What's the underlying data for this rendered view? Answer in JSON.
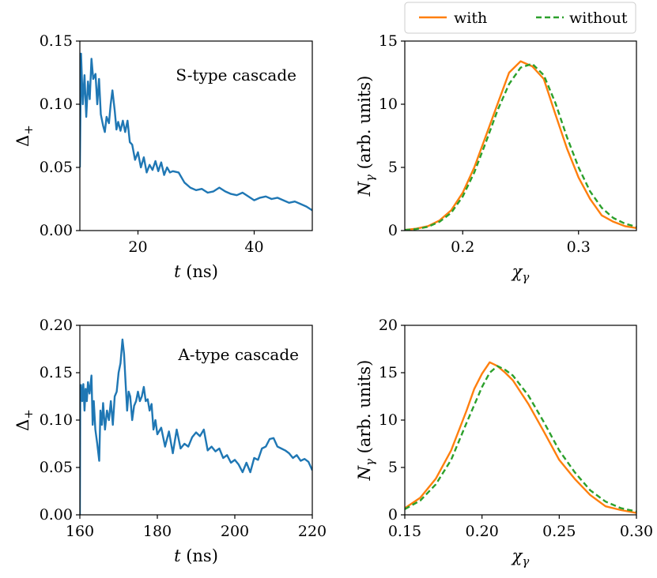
{
  "colors": {
    "blue": "#1f77b4",
    "orange": "#ff7f0e",
    "green": "#2ca02c"
  },
  "legend": {
    "with_label": "with",
    "without_label": "without"
  },
  "chart_data": [
    {
      "type": "line",
      "panel": "top-left",
      "annotation": "S-type cascade",
      "xlabel": "t (ns)",
      "ylabel": "Δ+",
      "xlim": [
        10,
        50
      ],
      "ylim": [
        0,
        0.15
      ],
      "xticks": [
        "20",
        "40"
      ],
      "yticks": [
        "0.00",
        "0.05",
        "0.10",
        "0.15"
      ],
      "series": [
        {
          "color": "#1f77b4",
          "x": [
            10.0,
            10.2,
            10.5,
            10.8,
            11.1,
            11.4,
            11.7,
            12.0,
            12.3,
            12.7,
            13.0,
            13.3,
            13.6,
            14.0,
            14.3,
            14.6,
            15.0,
            15.3,
            15.6,
            16.0,
            16.3,
            16.6,
            17.0,
            17.4,
            17.8,
            18.2,
            18.6,
            19.0,
            19.5,
            20.0,
            20.5,
            21.0,
            21.5,
            22.0,
            22.5,
            23.0,
            23.5,
            24.0,
            24.5,
            25.0,
            25.5,
            26.0,
            27.0,
            28.0,
            29.0,
            30.0,
            31.0,
            32.0,
            33.0,
            34.0,
            35.0,
            36.0,
            37.0,
            38.0,
            39.0,
            40.0,
            41.0,
            42.0,
            43.0,
            44.0,
            45.0,
            46.0,
            47.0,
            48.0,
            49.0,
            50.0
          ],
          "y": [
            0.05,
            0.14,
            0.1,
            0.123,
            0.09,
            0.118,
            0.104,
            0.136,
            0.12,
            0.124,
            0.1,
            0.12,
            0.092,
            0.083,
            0.078,
            0.09,
            0.085,
            0.1,
            0.111,
            0.095,
            0.08,
            0.086,
            0.079,
            0.087,
            0.078,
            0.087,
            0.07,
            0.068,
            0.056,
            0.062,
            0.05,
            0.058,
            0.046,
            0.052,
            0.048,
            0.055,
            0.047,
            0.054,
            0.044,
            0.05,
            0.046,
            0.047,
            0.046,
            0.038,
            0.034,
            0.032,
            0.033,
            0.03,
            0.031,
            0.034,
            0.031,
            0.029,
            0.028,
            0.03,
            0.027,
            0.024,
            0.026,
            0.027,
            0.025,
            0.026,
            0.024,
            0.022,
            0.023,
            0.021,
            0.019,
            0.016
          ]
        }
      ]
    },
    {
      "type": "line",
      "panel": "top-right",
      "xlabel": "χγ",
      "ylabel": "Nγ (arb. units)",
      "xlim": [
        0.15,
        0.35
      ],
      "ylim": [
        0,
        15
      ],
      "xticks": [
        "0.2",
        "0.3"
      ],
      "yticks": [
        "0",
        "5",
        "10",
        "15"
      ],
      "series": [
        {
          "name": "with",
          "color": "#ff7f0e",
          "x": [
            0.15,
            0.16,
            0.17,
            0.18,
            0.19,
            0.2,
            0.21,
            0.22,
            0.23,
            0.24,
            0.25,
            0.26,
            0.27,
            0.28,
            0.29,
            0.3,
            0.31,
            0.32,
            0.33,
            0.34,
            0.35
          ],
          "y": [
            0.05,
            0.15,
            0.35,
            0.8,
            1.6,
            3.0,
            5.0,
            7.5,
            10.0,
            12.5,
            13.4,
            13.0,
            12.0,
            9.2,
            6.5,
            4.2,
            2.5,
            1.2,
            0.7,
            0.35,
            0.2
          ]
        },
        {
          "name": "without",
          "color": "#2ca02c",
          "x": [
            0.15,
            0.16,
            0.17,
            0.18,
            0.19,
            0.2,
            0.21,
            0.22,
            0.23,
            0.24,
            0.25,
            0.26,
            0.27,
            0.28,
            0.29,
            0.3,
            0.31,
            0.32,
            0.33,
            0.34,
            0.35
          ],
          "y": [
            0.05,
            0.12,
            0.3,
            0.7,
            1.4,
            2.7,
            4.6,
            7.0,
            9.5,
            11.6,
            12.9,
            13.2,
            12.3,
            10.1,
            7.4,
            5.0,
            3.1,
            1.8,
            1.0,
            0.55,
            0.3
          ]
        }
      ]
    },
    {
      "type": "line",
      "panel": "bottom-left",
      "annotation": "A-type cascade",
      "xlabel": "t (ns)",
      "ylabel": "Δ+",
      "xlim": [
        160,
        220
      ],
      "ylim": [
        0,
        0.2
      ],
      "xticks": [
        "160",
        "180",
        "200",
        "220"
      ],
      "yticks": [
        "0.00",
        "0.05",
        "0.10",
        "0.15",
        "0.20"
      ],
      "series": [
        {
          "color": "#1f77b4",
          "x": [
            160.0,
            160.1,
            160.3,
            160.6,
            160.9,
            161.2,
            161.5,
            161.8,
            162.1,
            162.5,
            163.0,
            163.3,
            163.6,
            164.0,
            164.5,
            165.0,
            165.3,
            165.7,
            166.0,
            166.5,
            167.0,
            167.5,
            168.0,
            168.5,
            169.0,
            169.5,
            170.0,
            170.5,
            171.0,
            171.4,
            171.8,
            172.2,
            172.6,
            173.0,
            173.5,
            174.0,
            174.5,
            175.0,
            175.5,
            176.0,
            176.5,
            177.0,
            177.5,
            178.0,
            178.5,
            179.0,
            179.5,
            180.0,
            181.0,
            182.0,
            183.0,
            184.0,
            185.0,
            186.0,
            187.0,
            188.0,
            189.0,
            190.0,
            191.0,
            192.0,
            193.0,
            194.0,
            195.0,
            196.0,
            197.0,
            198.0,
            199.0,
            200.0,
            201.0,
            202.0,
            203.0,
            204.0,
            205.0,
            206.0,
            207.0,
            208.0,
            209.0,
            210.0,
            211.0,
            212.0,
            213.0,
            214.0,
            215.0,
            216.0,
            217.0,
            218.0,
            219.0,
            220.0
          ],
          "y": [
            0.0,
            0.13,
            0.137,
            0.12,
            0.138,
            0.11,
            0.133,
            0.12,
            0.14,
            0.128,
            0.147,
            0.095,
            0.12,
            0.09,
            0.075,
            0.057,
            0.11,
            0.095,
            0.118,
            0.09,
            0.11,
            0.1,
            0.12,
            0.095,
            0.125,
            0.13,
            0.15,
            0.16,
            0.185,
            0.17,
            0.14,
            0.11,
            0.13,
            0.125,
            0.1,
            0.115,
            0.12,
            0.13,
            0.12,
            0.125,
            0.135,
            0.12,
            0.122,
            0.11,
            0.117,
            0.09,
            0.1,
            0.085,
            0.092,
            0.072,
            0.088,
            0.065,
            0.09,
            0.07,
            0.075,
            0.072,
            0.082,
            0.087,
            0.083,
            0.09,
            0.068,
            0.072,
            0.067,
            0.07,
            0.06,
            0.063,
            0.055,
            0.058,
            0.053,
            0.045,
            0.055,
            0.045,
            0.06,
            0.058,
            0.07,
            0.072,
            0.08,
            0.081,
            0.072,
            0.07,
            0.068,
            0.065,
            0.06,
            0.063,
            0.057,
            0.059,
            0.056,
            0.047
          ]
        }
      ]
    },
    {
      "type": "line",
      "panel": "bottom-right",
      "xlabel": "χγ",
      "ylabel": "Nγ (arb. units)",
      "xlim": [
        0.15,
        0.3
      ],
      "ylim": [
        0,
        20
      ],
      "xticks": [
        "0.15",
        "0.20",
        "0.25",
        "0.30"
      ],
      "yticks": [
        "0",
        "5",
        "10",
        "15",
        "20"
      ],
      "series": [
        {
          "name": "with",
          "color": "#ff7f0e",
          "x": [
            0.15,
            0.16,
            0.17,
            0.18,
            0.19,
            0.195,
            0.2,
            0.205,
            0.21,
            0.215,
            0.22,
            0.23,
            0.24,
            0.25,
            0.26,
            0.27,
            0.28,
            0.29,
            0.3
          ],
          "y": [
            0.7,
            1.8,
            3.8,
            6.8,
            11.0,
            13.3,
            14.9,
            16.1,
            15.7,
            15.0,
            14.2,
            11.7,
            8.8,
            5.8,
            3.8,
            2.1,
            0.9,
            0.5,
            0.2
          ]
        },
        {
          "name": "without",
          "color": "#2ca02c",
          "x": [
            0.15,
            0.16,
            0.17,
            0.18,
            0.19,
            0.2,
            0.205,
            0.21,
            0.215,
            0.22,
            0.23,
            0.24,
            0.25,
            0.26,
            0.27,
            0.28,
            0.29,
            0.3
          ],
          "y": [
            0.6,
            1.5,
            3.2,
            5.8,
            9.7,
            13.5,
            15.0,
            15.7,
            15.3,
            14.7,
            12.6,
            9.8,
            6.8,
            4.5,
            2.6,
            1.4,
            0.7,
            0.35
          ]
        }
      ]
    }
  ]
}
